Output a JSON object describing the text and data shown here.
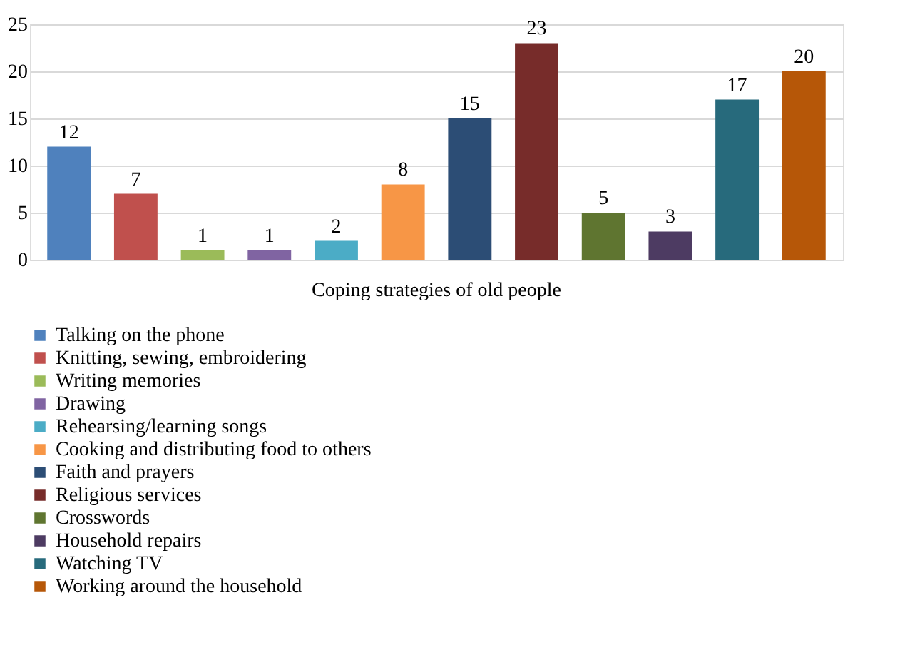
{
  "chart_data": {
    "type": "bar",
    "categories": [
      "Coping strategies of old people"
    ],
    "series": [
      {
        "name": "Talking on the phone",
        "color": "#4f81bd",
        "values": [
          12
        ]
      },
      {
        "name": "Knitting, sewing, embroidering",
        "color": "#c0504d",
        "values": [
          7
        ]
      },
      {
        "name": "Writing memories",
        "color": "#9bbb59",
        "values": [
          1
        ]
      },
      {
        "name": "Drawing",
        "color": "#8064a2",
        "values": [
          1
        ]
      },
      {
        "name": "Rehearsing/learning songs",
        "color": "#4bacc6",
        "values": [
          2
        ]
      },
      {
        "name": "Cooking and distributing food to others",
        "color": "#f79646",
        "values": [
          8
        ]
      },
      {
        "name": "Faith and prayers",
        "color": "#2c4d75",
        "values": [
          15
        ]
      },
      {
        "name": "Religious services",
        "color": "#772c2a",
        "values": [
          23
        ]
      },
      {
        "name": "Crosswords",
        "color": "#5f7530",
        "values": [
          5
        ]
      },
      {
        "name": "Household repairs",
        "color": "#4d3b62",
        "values": [
          3
        ]
      },
      {
        "name": "Watching TV",
        "color": "#276a7c",
        "values": [
          17
        ]
      },
      {
        "name": "Working around the household",
        "color": "#b65708",
        "values": [
          20
        ]
      }
    ],
    "ylim": [
      0,
      25
    ],
    "yticks": [
      0,
      5,
      10,
      15,
      20,
      25
    ],
    "grid": "y",
    "legend": "bottom",
    "data_labels": true
  }
}
